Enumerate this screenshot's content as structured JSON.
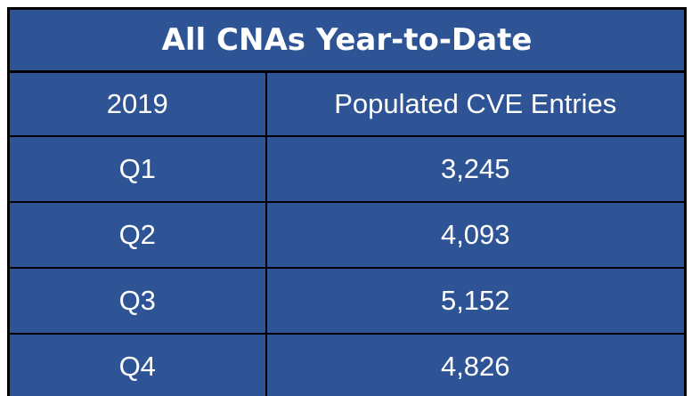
{
  "table": {
    "title": "All CNAs Year-to-Date",
    "columns": {
      "year": "2019",
      "metric": "Populated CVE Entries"
    },
    "rows": [
      {
        "label": "Q1",
        "value": "3,245"
      },
      {
        "label": "Q2",
        "value": "4,093"
      },
      {
        "label": "Q3",
        "value": "5,152"
      },
      {
        "label": "Q4",
        "value": "4,826"
      }
    ]
  },
  "colors": {
    "cell_background": "#2F5496",
    "border": "#000000",
    "text": "#FFFFFF",
    "page_background": "#FFFFFF"
  },
  "chart_data": {
    "type": "table",
    "title": "All CNAs Year-to-Date",
    "columns": [
      "2019",
      "Populated CVE Entries"
    ],
    "categories": [
      "Q1",
      "Q2",
      "Q3",
      "Q4"
    ],
    "values": [
      3245,
      4093,
      5152,
      4826
    ]
  }
}
